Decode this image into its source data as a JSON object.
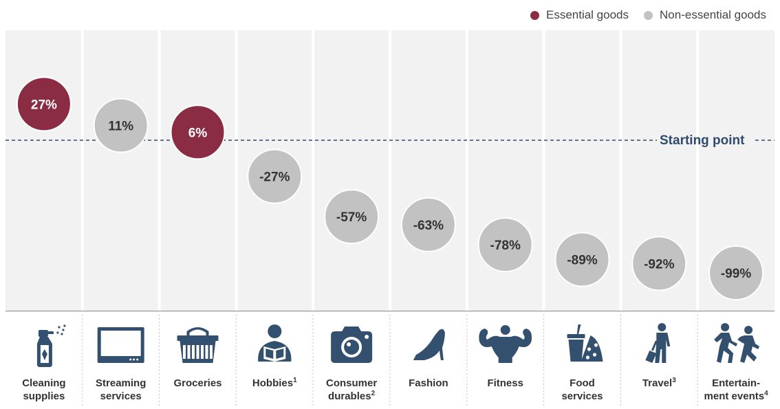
{
  "legend": {
    "essential_label": "Essential goods",
    "nonessential_label": "Non-essential goods"
  },
  "colors": {
    "essential": "#8b2c45",
    "nonessential": "#c2c2c2",
    "column_bg": "#f2f2f2",
    "icon": "#34506f",
    "baseline": "#2f4b6e"
  },
  "baseline_label": "Starting point",
  "chart_data": {
    "type": "scatter",
    "baseline_value": 0,
    "categories": [
      {
        "lines": [
          "Cleaning",
          "supplies"
        ],
        "sup": "",
        "value": 27,
        "label": "27%",
        "group": "essential",
        "icon": "spray-bottle-icon"
      },
      {
        "lines": [
          "Streaming",
          "services"
        ],
        "sup": "",
        "value": 11,
        "label": "11%",
        "group": "nonessential",
        "icon": "tv-icon"
      },
      {
        "lines": [
          "Groceries"
        ],
        "sup": "",
        "value": 6,
        "label": "6%",
        "group": "essential",
        "icon": "basket-icon"
      },
      {
        "lines": [
          "Hobbies"
        ],
        "sup": "1",
        "value": -27,
        "label": "-27%",
        "group": "nonessential",
        "icon": "reader-icon"
      },
      {
        "lines": [
          "Consumer",
          "durables"
        ],
        "sup": "2",
        "value": -57,
        "label": "-57%",
        "group": "nonessential",
        "icon": "camera-icon"
      },
      {
        "lines": [
          "Fashion"
        ],
        "sup": "",
        "value": -63,
        "label": "-63%",
        "group": "nonessential",
        "icon": "high-heel-icon"
      },
      {
        "lines": [
          "Fitness"
        ],
        "sup": "",
        "value": -78,
        "label": "-78%",
        "group": "nonessential",
        "icon": "bodybuilder-icon"
      },
      {
        "lines": [
          "Food",
          "services"
        ],
        "sup": "",
        "value": -89,
        "label": "-89%",
        "group": "nonessential",
        "icon": "drink-pizza-icon"
      },
      {
        "lines": [
          "Travel"
        ],
        "sup": "3",
        "value": -92,
        "label": "-92%",
        "group": "nonessential",
        "icon": "traveler-icon"
      },
      {
        "lines": [
          "Entertain-",
          "ment events"
        ],
        "sup": "4",
        "value": -99,
        "label": "-99%",
        "group": "nonessential",
        "icon": "running-people-icon"
      }
    ]
  }
}
